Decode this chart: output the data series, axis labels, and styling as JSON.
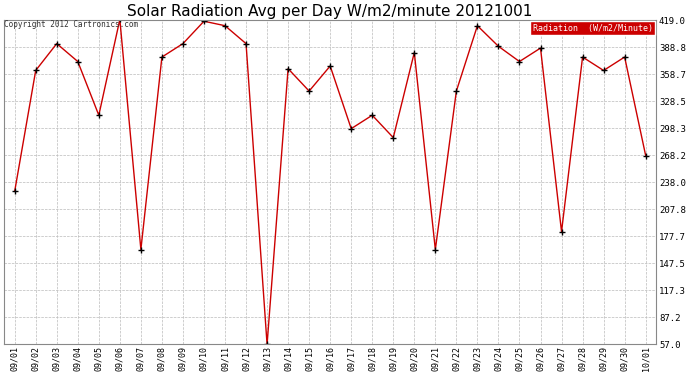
{
  "title": "Solar Radiation Avg per Day W/m2/minute 20121001",
  "copyright_text": "Copyright 2012 Cartronics.com",
  "legend_label": "Radiation  (W/m2/Minute)",
  "dates": [
    "09/01",
    "09/02",
    "09/03",
    "09/04",
    "09/05",
    "09/06",
    "09/07",
    "09/08",
    "09/09",
    "09/10",
    "09/11",
    "09/12",
    "09/13",
    "09/14",
    "09/15",
    "09/16",
    "09/17",
    "09/18",
    "09/19",
    "09/20",
    "09/21",
    "09/22",
    "09/23",
    "09/24",
    "09/25",
    "09/26",
    "09/27",
    "09/28",
    "09/29",
    "09/30",
    "10/01"
  ],
  "values": [
    228,
    363,
    393,
    373,
    313,
    420,
    163,
    378,
    393,
    418,
    413,
    393,
    57,
    365,
    340,
    368,
    298,
    313,
    288,
    383,
    163,
    340,
    413,
    390,
    373,
    388,
    183,
    378,
    363,
    378,
    268
  ],
  "ylim": [
    57.0,
    419.0
  ],
  "yticks": [
    57.0,
    87.2,
    117.3,
    147.5,
    177.7,
    207.8,
    238.0,
    268.2,
    298.3,
    328.5,
    358.7,
    388.8,
    419.0
  ],
  "line_color": "#cc0000",
  "marker_color": "#000000",
  "bg_color": "#ffffff",
  "grid_color": "#bbbbbb",
  "title_fontsize": 11,
  "legend_bg": "#cc0000",
  "legend_fg": "#ffffff"
}
